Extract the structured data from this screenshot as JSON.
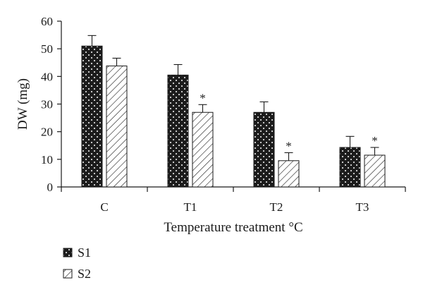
{
  "chart_data": {
    "type": "bar",
    "categories": [
      "C",
      "T1",
      "T2",
      "T3"
    ],
    "series": [
      {
        "name": "S1",
        "pattern": "dots",
        "fill_color": "#1c1c1c",
        "values": [
          51,
          40.5,
          27,
          14.3
        ],
        "errors": [
          3.8,
          3.8,
          3.8,
          4
        ],
        "annotations": [
          "",
          "",
          "",
          ""
        ]
      },
      {
        "name": "S2",
        "pattern": "hatch",
        "fill_color": "#ffffff",
        "values": [
          43.8,
          27,
          9.5,
          11.5
        ],
        "errors": [
          2.8,
          2.8,
          2.9,
          2.8
        ],
        "annotations": [
          "",
          "*",
          "*",
          "*"
        ]
      }
    ],
    "xlabel": "Temperature treatment °C",
    "ylabel": "DW (mg)",
    "ylim": [
      0,
      60
    ],
    "yticks": [
      0,
      10,
      20,
      30,
      40,
      50,
      60
    ],
    "grid": false,
    "legend_position": "bottom-left"
  }
}
